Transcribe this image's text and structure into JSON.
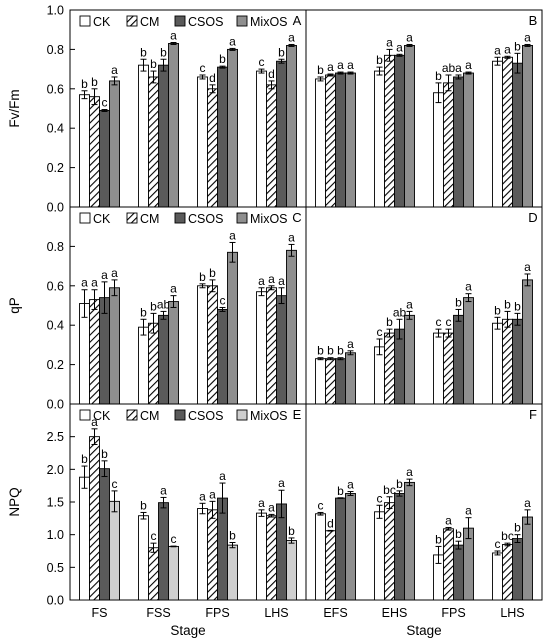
{
  "chart_data": [
    {
      "panel": "A",
      "type": "bar",
      "ylabel": "Fv/Fm",
      "xlabel": "",
      "ylim": [
        0,
        1.0
      ],
      "yticks": [
        "0.0",
        "0.2",
        "0.4",
        "0.6",
        "0.8",
        "1.0"
      ],
      "categories": [
        "FS",
        "FSS",
        "FPS",
        "LHS"
      ],
      "legend": [
        "CK",
        "CM",
        "CSOS",
        "MixOS"
      ],
      "series": [
        {
          "name": "CK",
          "values": [
            0.57,
            0.72,
            0.66,
            0.69
          ],
          "errors": [
            0.02,
            0.03,
            0.01,
            0.01
          ],
          "letters": [
            "b",
            "b",
            "c",
            "c"
          ]
        },
        {
          "name": "CM",
          "values": [
            0.56,
            0.66,
            0.6,
            0.62
          ],
          "errors": [
            0.04,
            0.03,
            0.02,
            0.02
          ],
          "letters": [
            "b",
            "b",
            "d",
            "d"
          ]
        },
        {
          "name": "CSOS",
          "values": [
            0.49,
            0.72,
            0.71,
            0.74
          ],
          "errors": [
            0.005,
            0.03,
            0.005,
            0.01
          ],
          "letters": [
            "c",
            "b",
            "b",
            "b"
          ]
        },
        {
          "name": "MixOS",
          "values": [
            0.64,
            0.83,
            0.8,
            0.82
          ],
          "errors": [
            0.02,
            0.005,
            0.005,
            0.005
          ],
          "letters": [
            "a",
            "a",
            "a",
            "a"
          ]
        }
      ]
    },
    {
      "panel": "B",
      "type": "bar",
      "ylabel": "",
      "xlabel": "",
      "ylim": [
        0,
        1.0
      ],
      "yticks": [],
      "categories": [
        "EFS",
        "EHS",
        "FPS",
        "LHS"
      ],
      "legend": [],
      "series": [
        {
          "name": "CK",
          "values": [
            0.65,
            0.69,
            0.58,
            0.74
          ],
          "errors": [
            0.01,
            0.02,
            0.05,
            0.02
          ],
          "letters": [
            "b",
            "b",
            "b",
            "a"
          ]
        },
        {
          "name": "CM",
          "values": [
            0.67,
            0.77,
            0.63,
            0.76
          ],
          "errors": [
            0.005,
            0.03,
            0.04,
            0.005
          ],
          "letters": [
            "a",
            "a",
            "ab",
            "a"
          ]
        },
        {
          "name": "CSOS",
          "values": [
            0.68,
            0.77,
            0.66,
            0.73
          ],
          "errors": [
            0.005,
            0.005,
            0.01,
            0.05
          ],
          "letters": [
            "a",
            "a",
            "a",
            "b"
          ]
        },
        {
          "name": "MixOS",
          "values": [
            0.68,
            0.82,
            0.68,
            0.82
          ],
          "errors": [
            0.005,
            0.005,
            0.005,
            0.005
          ],
          "letters": [
            "a",
            "a",
            "a",
            "a"
          ]
        }
      ]
    },
    {
      "panel": "C",
      "type": "bar",
      "ylabel": "qP",
      "xlabel": "",
      "ylim": [
        0,
        1.0
      ],
      "yticks": [
        "0.0",
        "0.2",
        "0.4",
        "0.6",
        "0.8"
      ],
      "categories": [
        "FS",
        "FSS",
        "FPS",
        "LHS"
      ],
      "legend": [
        "CK",
        "CM",
        "CSOS",
        "MixOS"
      ],
      "series": [
        {
          "name": "CK",
          "values": [
            0.51,
            0.39,
            0.6,
            0.57
          ],
          "errors": [
            0.07,
            0.04,
            0.01,
            0.02
          ],
          "letters": [
            "a",
            "b",
            "b",
            "a"
          ]
        },
        {
          "name": "CM",
          "values": [
            0.53,
            0.41,
            0.6,
            0.59
          ],
          "errors": [
            0.05,
            0.05,
            0.03,
            0.01
          ],
          "letters": [
            "a",
            "b",
            "b",
            "a"
          ]
        },
        {
          "name": "CSOS",
          "values": [
            0.54,
            0.45,
            0.48,
            0.55
          ],
          "errors": [
            0.08,
            0.02,
            0.01,
            0.04
          ],
          "letters": [
            "a",
            "ab",
            "c",
            "a"
          ]
        },
        {
          "name": "MixOS",
          "values": [
            0.59,
            0.52,
            0.77,
            0.78
          ],
          "errors": [
            0.04,
            0.03,
            0.05,
            0.03
          ],
          "letters": [
            "a",
            "a",
            "a",
            "a"
          ]
        }
      ]
    },
    {
      "panel": "D",
      "type": "bar",
      "ylabel": "",
      "xlabel": "",
      "ylim": [
        0,
        1.0
      ],
      "yticks": [],
      "categories": [
        "EFS",
        "EHS",
        "FPS",
        "LHS"
      ],
      "legend": [],
      "series": [
        {
          "name": "CK",
          "values": [
            0.23,
            0.29,
            0.36,
            0.41
          ],
          "errors": [
            0.005,
            0.04,
            0.02,
            0.03
          ],
          "letters": [
            "b",
            "c",
            "c",
            "b"
          ]
        },
        {
          "name": "CM",
          "values": [
            0.23,
            0.36,
            0.36,
            0.43
          ],
          "errors": [
            0.005,
            0.02,
            0.02,
            0.04
          ],
          "letters": [
            "b",
            "b",
            "c",
            "b"
          ]
        },
        {
          "name": "CSOS",
          "values": [
            0.23,
            0.38,
            0.45,
            0.43
          ],
          "errors": [
            0.005,
            0.05,
            0.03,
            0.03
          ],
          "letters": [
            "b",
            "ab",
            "b",
            "b"
          ]
        },
        {
          "name": "MixOS",
          "values": [
            0.26,
            0.45,
            0.54,
            0.63
          ],
          "errors": [
            0.01,
            0.02,
            0.02,
            0.03
          ],
          "letters": [
            "a",
            "a",
            "a",
            "a"
          ]
        }
      ]
    },
    {
      "panel": "E",
      "type": "bar",
      "ylabel": "NPQ",
      "xlabel": "Stage",
      "ylim": [
        0,
        3.0
      ],
      "yticks": [
        "0.0",
        "0.5",
        "1.0",
        "1.5",
        "2.0",
        "2.5"
      ],
      "categories": [
        "FS",
        "FSS",
        "FPS",
        "LHS"
      ],
      "legend": [
        "CK",
        "CM",
        "CSOS",
        "MixOS"
      ],
      "series": [
        {
          "name": "CK",
          "values": [
            1.88,
            1.29,
            1.4,
            1.33
          ],
          "errors": [
            0.17,
            0.05,
            0.08,
            0.05
          ],
          "letters": [
            "b",
            "b",
            "a",
            "a"
          ]
        },
        {
          "name": "CM",
          "values": [
            2.5,
            0.8,
            1.38,
            1.29
          ],
          "errors": [
            0.12,
            0.07,
            0.13,
            0.02
          ],
          "letters": [
            "a",
            "c",
            "a",
            "a"
          ]
        },
        {
          "name": "CSOS",
          "values": [
            2.01,
            1.49,
            1.56,
            1.47
          ],
          "errors": [
            0.12,
            0.08,
            0.23,
            0.21
          ],
          "letters": [
            "b",
            "a",
            "a",
            "a"
          ]
        },
        {
          "name": "MixOS",
          "values": [
            1.51,
            0.82,
            0.84,
            0.91
          ],
          "errors": [
            0.16,
            0.005,
            0.04,
            0.04
          ],
          "letters": [
            "c",
            "c",
            "b",
            "b"
          ]
        }
      ]
    },
    {
      "panel": "F",
      "type": "bar",
      "ylabel": "",
      "xlabel": "Stage",
      "ylim": [
        0,
        3.0
      ],
      "yticks": [],
      "categories": [
        "EFS",
        "EHS",
        "FPS",
        "LHS"
      ],
      "legend": [],
      "series": [
        {
          "name": "CK",
          "values": [
            1.32,
            1.35,
            0.69,
            0.72
          ],
          "errors": [
            0.02,
            0.1,
            0.13,
            0.03
          ],
          "letters": [
            "c",
            "c",
            "b",
            "c"
          ]
        },
        {
          "name": "CM",
          "values": [
            1.06,
            1.49,
            1.09,
            0.85
          ],
          "errors": [
            0.005,
            0.09,
            0.02,
            0.02
          ],
          "letters": [
            "d",
            "bc",
            "a",
            "bc"
          ]
        },
        {
          "name": "CSOS",
          "values": [
            1.56,
            1.63,
            0.84,
            0.94
          ],
          "errors": [
            0.005,
            0.04,
            0.06,
            0.06
          ],
          "letters": [
            "b",
            "b",
            "b",
            "b"
          ]
        },
        {
          "name": "MixOS",
          "values": [
            1.63,
            1.8,
            1.1,
            1.27
          ],
          "errors": [
            0.03,
            0.05,
            0.16,
            0.11
          ],
          "letters": [
            "a",
            "a",
            "a",
            "a"
          ]
        }
      ]
    }
  ],
  "colors": {
    "CK": "#ffffff",
    "CM": "#ffffff",
    "CSOS": "#5a5a5a",
    "MixOS": "#8f8f8f",
    "MixOS_npq": "#cfcfcf",
    "outline": "#000000"
  }
}
